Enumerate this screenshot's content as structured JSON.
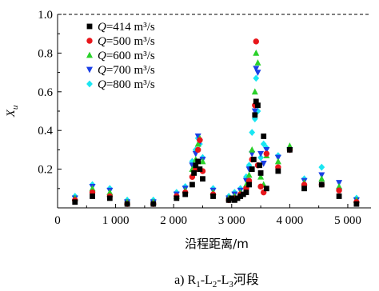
{
  "chart_data": {
    "type": "scatter",
    "ylabel": "X",
    "ylabel_sub": "u",
    "xlabel": "沿程距离/m",
    "caption": {
      "prefix": "a) R",
      "sub1": "1",
      "mid1": "-L",
      "sub2": "2",
      "mid2": "-L",
      "sub3": "3",
      "suffix": "河段"
    },
    "xlim": [
      0,
      5400
    ],
    "ylim": [
      0,
      1.0
    ],
    "x_ticks": [
      0,
      1000,
      2000,
      3000,
      4000,
      5000
    ],
    "x_tick_labels": [
      "0",
      "1 000",
      "2 000",
      "3 000",
      "4 000",
      "5 000"
    ],
    "y_ticks": [
      0.2,
      0.4,
      0.6,
      0.8,
      1.0
    ],
    "y_tick_labels": [
      "0.2",
      "0.4",
      "0.6",
      "0.8",
      "1.0"
    ],
    "reference_line": {
      "y": 1.0,
      "style": "dashed"
    },
    "legend_position": "top-left",
    "series": [
      {
        "name_italic": "Q",
        "name_rest": "=414 m³/s",
        "marker": "square",
        "color": "#000000",
        "points": [
          [
            300,
            0.03
          ],
          [
            600,
            0.06
          ],
          [
            900,
            0.05
          ],
          [
            1200,
            0.02
          ],
          [
            1650,
            0.02
          ],
          [
            2050,
            0.05
          ],
          [
            2200,
            0.07
          ],
          [
            2320,
            0.12
          ],
          [
            2350,
            0.18
          ],
          [
            2380,
            0.22
          ],
          [
            2420,
            0.24
          ],
          [
            2450,
            0.2
          ],
          [
            2500,
            0.15
          ],
          [
            2680,
            0.06
          ],
          [
            2950,
            0.04
          ],
          [
            3000,
            0.05
          ],
          [
            3050,
            0.04
          ],
          [
            3100,
            0.05
          ],
          [
            3150,
            0.06
          ],
          [
            3200,
            0.07
          ],
          [
            3250,
            0.08
          ],
          [
            3300,
            0.12
          ],
          [
            3350,
            0.2
          ],
          [
            3380,
            0.25
          ],
          [
            3400,
            0.48
          ],
          [
            3420,
            0.55
          ],
          [
            3450,
            0.53
          ],
          [
            3480,
            0.22
          ],
          [
            3500,
            0.18
          ],
          [
            3550,
            0.37
          ],
          [
            3600,
            0.1
          ],
          [
            3800,
            0.19
          ],
          [
            4000,
            0.3
          ],
          [
            4250,
            0.1
          ],
          [
            4550,
            0.12
          ],
          [
            4850,
            0.06
          ],
          [
            5150,
            0.02
          ]
        ]
      },
      {
        "name_italic": "Q",
        "name_rest": "=500 m³/s",
        "marker": "circle",
        "color": "#e8161b",
        "points": [
          [
            300,
            0.04
          ],
          [
            600,
            0.08
          ],
          [
            900,
            0.06
          ],
          [
            1200,
            0.02
          ],
          [
            1650,
            0.02
          ],
          [
            2050,
            0.06
          ],
          [
            2200,
            0.08
          ],
          [
            2320,
            0.16
          ],
          [
            2380,
            0.2
          ],
          [
            2420,
            0.3
          ],
          [
            2450,
            0.35
          ],
          [
            2500,
            0.19
          ],
          [
            2680,
            0.07
          ],
          [
            2950,
            0.04
          ],
          [
            3050,
            0.05
          ],
          [
            3150,
            0.07
          ],
          [
            3250,
            0.1
          ],
          [
            3300,
            0.14
          ],
          [
            3350,
            0.25
          ],
          [
            3400,
            0.53
          ],
          [
            3420,
            0.86
          ],
          [
            3450,
            0.22
          ],
          [
            3500,
            0.11
          ],
          [
            3550,
            0.08
          ],
          [
            3600,
            0.28
          ],
          [
            3800,
            0.21
          ],
          [
            4000,
            0.3
          ],
          [
            4250,
            0.12
          ],
          [
            4550,
            0.12
          ],
          [
            4850,
            0.09
          ],
          [
            5150,
            0.03
          ]
        ]
      },
      {
        "name_italic": "Q",
        "name_rest": "=600 m³/s",
        "marker": "triangle-up",
        "color": "#2ad12a",
        "points": [
          [
            300,
            0.05
          ],
          [
            600,
            0.1
          ],
          [
            900,
            0.08
          ],
          [
            1200,
            0.03
          ],
          [
            1650,
            0.03
          ],
          [
            2050,
            0.06
          ],
          [
            2200,
            0.09
          ],
          [
            2320,
            0.2
          ],
          [
            2380,
            0.25
          ],
          [
            2420,
            0.33
          ],
          [
            2450,
            0.36
          ],
          [
            2500,
            0.24
          ],
          [
            2680,
            0.08
          ],
          [
            2950,
            0.05
          ],
          [
            3050,
            0.06
          ],
          [
            3150,
            0.08
          ],
          [
            3250,
            0.12
          ],
          [
            3300,
            0.17
          ],
          [
            3350,
            0.3
          ],
          [
            3400,
            0.6
          ],
          [
            3420,
            0.8
          ],
          [
            3450,
            0.75
          ],
          [
            3500,
            0.16
          ],
          [
            3550,
            0.12
          ],
          [
            3600,
            0.27
          ],
          [
            3800,
            0.24
          ],
          [
            4000,
            0.32
          ],
          [
            4250,
            0.13
          ],
          [
            4550,
            0.15
          ],
          [
            4850,
            0.11
          ],
          [
            5150,
            0.04
          ]
        ]
      },
      {
        "name_italic": "Q",
        "name_rest": "=700 m³/s",
        "marker": "triangle-down",
        "color": "#1a3fe6",
        "points": [
          [
            300,
            0.05
          ],
          [
            600,
            0.11
          ],
          [
            900,
            0.09
          ],
          [
            1200,
            0.03
          ],
          [
            1650,
            0.03
          ],
          [
            2050,
            0.07
          ],
          [
            2200,
            0.1
          ],
          [
            2320,
            0.22
          ],
          [
            2380,
            0.28
          ],
          [
            2420,
            0.37
          ],
          [
            2450,
            0.34
          ],
          [
            2500,
            0.25
          ],
          [
            2680,
            0.09
          ],
          [
            2950,
            0.05
          ],
          [
            3050,
            0.07
          ],
          [
            3150,
            0.09
          ],
          [
            3250,
            0.14
          ],
          [
            3300,
            0.2
          ],
          [
            3350,
            0.28
          ],
          [
            3400,
            0.5
          ],
          [
            3420,
            0.72
          ],
          [
            3450,
            0.7
          ],
          [
            3500,
            0.28
          ],
          [
            3550,
            0.23
          ],
          [
            3600,
            0.3
          ],
          [
            3800,
            0.26
          ],
          [
            4000,
            0.3
          ],
          [
            4250,
            0.14
          ],
          [
            4550,
            0.17
          ],
          [
            4850,
            0.13
          ],
          [
            5150,
            0.04
          ]
        ]
      },
      {
        "name_italic": "Q",
        "name_rest": "=800 m³/s",
        "marker": "diamond",
        "color": "#19e6f2",
        "points": [
          [
            300,
            0.06
          ],
          [
            600,
            0.12
          ],
          [
            900,
            0.1
          ],
          [
            1200,
            0.04
          ],
          [
            1650,
            0.04
          ],
          [
            2050,
            0.08
          ],
          [
            2200,
            0.11
          ],
          [
            2320,
            0.24
          ],
          [
            2380,
            0.3
          ],
          [
            2420,
            0.36
          ],
          [
            2450,
            0.33
          ],
          [
            2500,
            0.26
          ],
          [
            2680,
            0.1
          ],
          [
            2950,
            0.06
          ],
          [
            3050,
            0.08
          ],
          [
            3150,
            0.1
          ],
          [
            3250,
            0.16
          ],
          [
            3300,
            0.22
          ],
          [
            3350,
            0.39
          ],
          [
            3400,
            0.46
          ],
          [
            3420,
            0.67
          ],
          [
            3450,
            0.5
          ],
          [
            3500,
            0.26
          ],
          [
            3550,
            0.33
          ],
          [
            3600,
            0.31
          ],
          [
            3800,
            0.27
          ],
          [
            4000,
            0.31
          ],
          [
            4250,
            0.15
          ],
          [
            4550,
            0.21
          ],
          [
            4850,
            0.1
          ],
          [
            5150,
            0.05
          ]
        ]
      }
    ]
  }
}
